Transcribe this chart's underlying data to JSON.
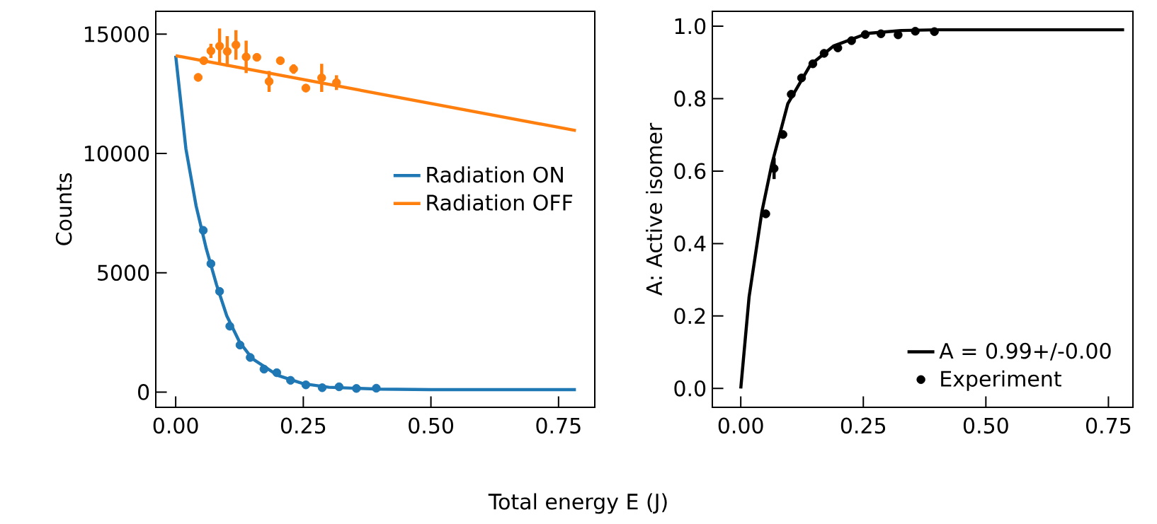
{
  "chart_data": [
    {
      "type": "scatter",
      "xlabel": "Total energy E (J)",
      "ylabel": "Counts",
      "xlim": [
        -0.039,
        0.821
      ],
      "ylim": [
        -640,
        15960
      ],
      "xticks": [
        {
          "value": 0,
          "label": "0.00"
        },
        {
          "value": 0.25,
          "label": "0.25"
        },
        {
          "value": 0.5,
          "label": "0.50"
        },
        {
          "value": 0.75,
          "label": "0.75"
        }
      ],
      "yticks": [
        0,
        5000,
        10000,
        15000
      ],
      "legend": "right",
      "series": [
        {
          "type": "scatter",
          "color": "#1f77b4",
          "marker": "circle",
          "x": [
            0.054,
            0.069,
            0.086,
            0.106,
            0.126,
            0.146,
            0.173,
            0.198,
            0.225,
            0.255,
            0.287,
            0.32,
            0.354,
            0.393
          ],
          "values": [
            6780,
            5380,
            4220,
            2760,
            1970,
            1450,
            960,
            810,
            490,
            300,
            180,
            220,
            150,
            160
          ]
        },
        {
          "type": "scatter",
          "color": "#ff7f0e",
          "marker": "circle",
          "x": [
            0.044,
            0.055,
            0.069,
            0.086,
            0.101,
            0.118,
            0.138,
            0.159,
            0.183,
            0.205,
            0.231,
            0.255,
            0.286,
            0.315
          ],
          "values": [
            13190,
            13890,
            14300,
            14500,
            14280,
            14550,
            14050,
            14030,
            13020,
            13890,
            13540,
            12740,
            13170,
            12970
          ],
          "errors": [
            null,
            null,
            300,
            740,
            640,
            620,
            680,
            null,
            440,
            150,
            200,
            null,
            590,
            310
          ]
        },
        {
          "type": "line",
          "name": "Radiation ON",
          "color": "#1f77b4",
          "marker": "none",
          "x": [
            0,
            0.02,
            0.04,
            0.06,
            0.08,
            0.1,
            0.125,
            0.15,
            0.2,
            0.25,
            0.3,
            0.4,
            0.5,
            0.6,
            0.784
          ],
          "values": [
            14100,
            10200,
            7800,
            6000,
            4500,
            3200,
            2100,
            1400,
            700,
            350,
            200,
            120,
            100,
            100,
            100
          ]
        },
        {
          "type": "line",
          "name": "Radiation OFF",
          "color": "#ff7f0e",
          "marker": "none",
          "x": [
            0,
            0.784
          ],
          "values": [
            14100,
            10960
          ]
        }
      ]
    },
    {
      "type": "scatter",
      "ylabel": "A: Active isomer",
      "xlim": [
        -0.058,
        0.8
      ],
      "ylim": [
        -0.052,
        1.041
      ],
      "xticks": [
        {
          "value": 0,
          "label": "0.00"
        },
        {
          "value": 0.25,
          "label": "0.25"
        },
        {
          "value": 0.5,
          "label": "0.50"
        },
        {
          "value": 0.75,
          "label": "0.75"
        }
      ],
      "yticks": [
        {
          "value": 0,
          "label": "0.0"
        },
        {
          "value": 0.2,
          "label": "0.2"
        },
        {
          "value": 0.4,
          "label": "0.4"
        },
        {
          "value": 0.6,
          "label": "0.6"
        },
        {
          "value": 0.8,
          "label": "0.8"
        },
        {
          "value": 1,
          "label": "1.0"
        }
      ],
      "legend": "bottom right",
      "series": [
        {
          "type": "line",
          "name": "A = 0.99+/-0.00",
          "color": "#000000",
          "marker": "none",
          "x": [
            0,
            0.017,
            0.043,
            0.063,
            0.096,
            0.142,
            0.189,
            0.258,
            0.327,
            0.4,
            0.55,
            0.782
          ],
          "values": [
            0,
            0.253,
            0.487,
            0.617,
            0.786,
            0.893,
            0.945,
            0.98,
            0.988,
            0.99,
            0.99,
            0.99
          ]
        },
        {
          "type": "scatter",
          "name": "Experiment",
          "color": "#000000",
          "marker": "circle",
          "x": [
            0.051,
            0.068,
            0.086,
            0.103,
            0.124,
            0.147,
            0.17,
            0.198,
            0.226,
            0.254,
            0.286,
            0.321,
            0.356,
            0.395
          ],
          "values": [
            0.482,
            0.607,
            0.701,
            0.812,
            0.857,
            0.896,
            0.925,
            0.94,
            0.96,
            0.977,
            0.979,
            0.976,
            0.986,
            0.985
          ],
          "errors": [
            null,
            0.029,
            0.01,
            null,
            null,
            null,
            null,
            null,
            null,
            null,
            null,
            null,
            null,
            null
          ]
        }
      ]
    }
  ]
}
